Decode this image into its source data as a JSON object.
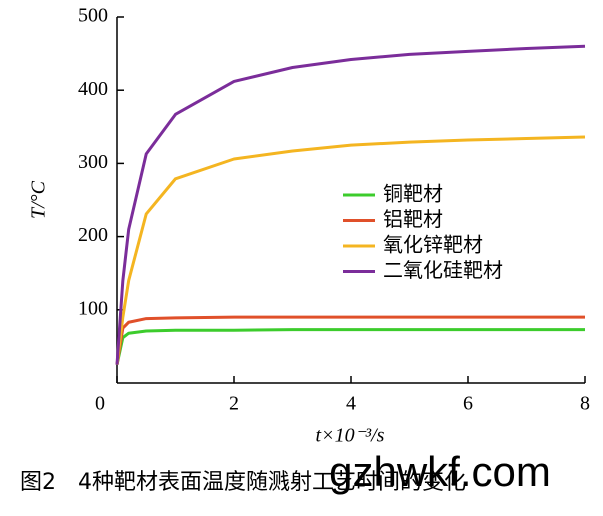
{
  "chart_data": {
    "type": "line",
    "x_label": "t×10⁻³/s",
    "y_label": "T/°C",
    "caption": "图2　4种靶材表面温度随溅射工艺时间的变化",
    "watermark": "gzhwkf.com",
    "x": [
      0,
      0.1,
      0.2,
      0.5,
      1,
      2,
      3,
      4,
      5,
      6,
      7,
      8
    ],
    "series": [
      {
        "name": "铜靶材",
        "color": "#3ccc2c",
        "values": [
          25,
          62,
          68,
          71,
          72,
          72,
          73,
          73,
          73,
          73,
          73,
          73
        ]
      },
      {
        "name": "铝靶材",
        "color": "#e0502a",
        "values": [
          25,
          75,
          83,
          88,
          89,
          90,
          90,
          90,
          90,
          90,
          90,
          90
        ]
      },
      {
        "name": "氧化锌靶材",
        "color": "#f4b521",
        "values": [
          25,
          90,
          140,
          231,
          279,
          306,
          317,
          325,
          329,
          332,
          334,
          336
        ]
      },
      {
        "name": "二氧化硅靶材",
        "color": "#7b2d9a",
        "values": [
          25,
          140,
          210,
          313,
          367,
          412,
          431,
          442,
          449,
          453,
          457,
          460
        ]
      }
    ],
    "xlim": [
      0,
      8
    ],
    "xticks": [
      0,
      2,
      4,
      6,
      8
    ],
    "ylim": [
      0,
      500
    ],
    "yticks": [
      100,
      200,
      300,
      400,
      500
    ]
  }
}
